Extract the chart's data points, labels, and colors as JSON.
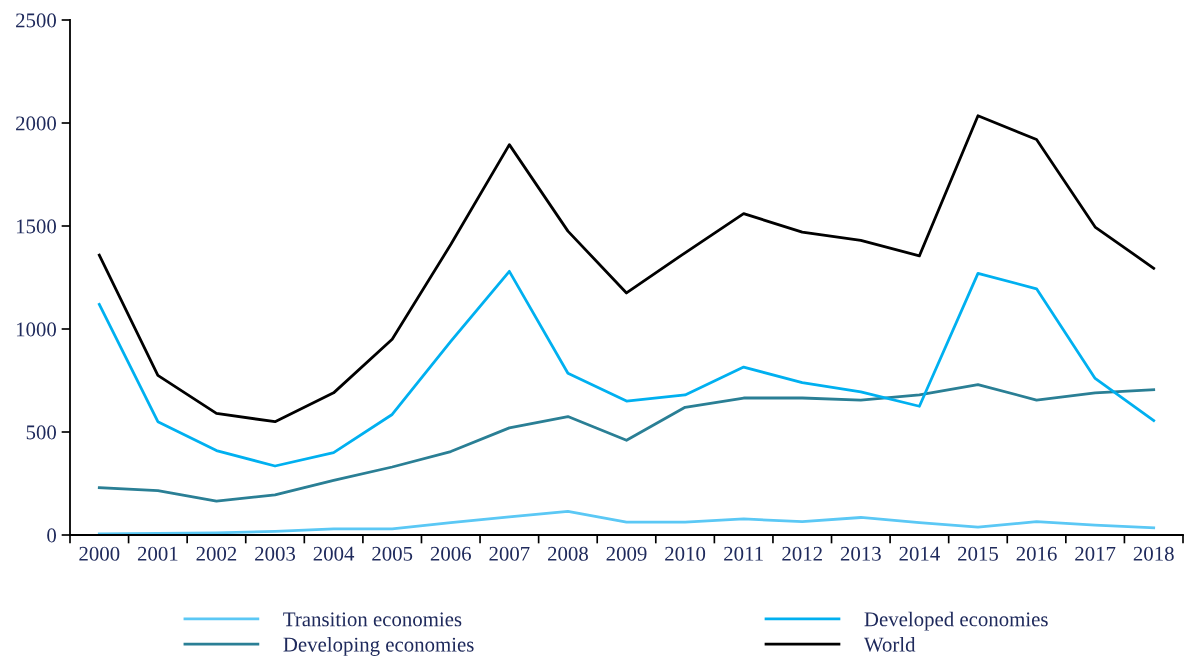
{
  "chart_data": {
    "type": "line",
    "categories": [
      "2000",
      "2001",
      "2002",
      "2003",
      "2004",
      "2005",
      "2006",
      "2007",
      "2008",
      "2009",
      "2010",
      "2011",
      "2012",
      "2013",
      "2014",
      "2015",
      "2016",
      "2017",
      "2018"
    ],
    "series": [
      {
        "name": "Transition economies",
        "color": "#5bc8f5",
        "values": [
          5,
          8,
          10,
          18,
          30,
          30,
          60,
          88,
          115,
          62,
          62,
          78,
          65,
          85,
          60,
          38,
          65,
          48,
          35
        ]
      },
      {
        "name": "Developing economies",
        "color": "#2a7f95",
        "values": [
          230,
          215,
          165,
          195,
          265,
          330,
          405,
          520,
          575,
          460,
          620,
          665,
          665,
          655,
          680,
          730,
          655,
          690,
          705
        ]
      },
      {
        "name": "Developed economies",
        "color": "#00b0f0",
        "values": [
          1120,
          550,
          410,
          335,
          400,
          585,
          940,
          1280,
          785,
          650,
          680,
          815,
          740,
          695,
          625,
          1270,
          1195,
          760,
          555
        ]
      },
      {
        "name": "World",
        "color": "#000000",
        "values": [
          1359,
          775,
          590,
          550,
          690,
          950,
          1410,
          1895,
          1475,
          1175,
          1370,
          1560,
          1470,
          1430,
          1355,
          2035,
          1920,
          1495,
          1295
        ]
      }
    ],
    "ylim": [
      0,
      2500
    ],
    "yticks": [
      0,
      500,
      1000,
      1500,
      2000,
      2500
    ],
    "grid": false,
    "legend": "bottom",
    "marker": "none",
    "line_style": "solid"
  }
}
